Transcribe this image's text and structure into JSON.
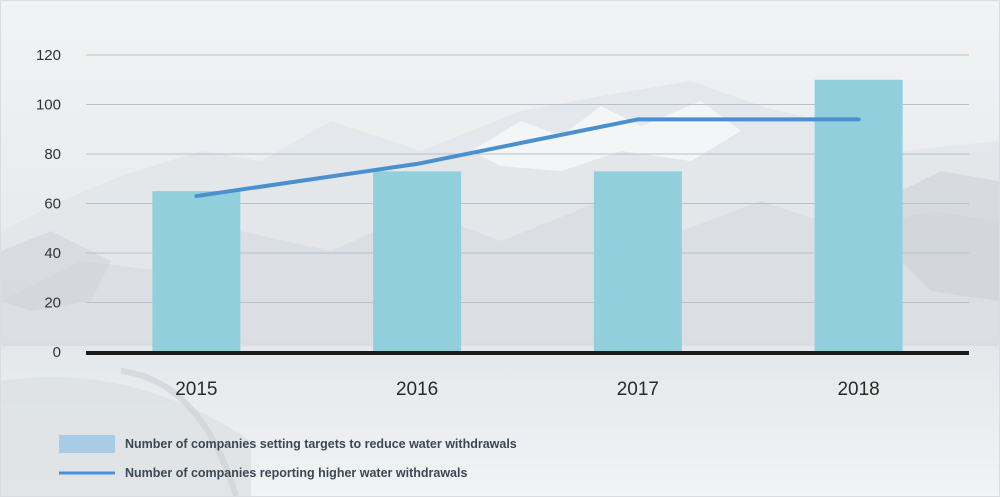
{
  "chart_data": {
    "type": "bar",
    "categories": [
      "2015",
      "2016",
      "2017",
      "2018"
    ],
    "ylim": [
      0,
      120
    ],
    "yticks": [
      0,
      20,
      40,
      60,
      80,
      100,
      120
    ],
    "grid": true,
    "legend_position": "bottom-left",
    "series": [
      {
        "name": "Number of companies setting targets to reduce water withdrawals",
        "type": "bar",
        "color": "#92cfdd",
        "values": [
          65,
          73,
          73,
          110
        ]
      },
      {
        "name": "Number of companies reporting higher water withdrawals",
        "type": "line",
        "color": "#4a90cf",
        "values": [
          63,
          76,
          94,
          94
        ]
      }
    ]
  },
  "legend": {
    "bar_swatch_color": "#a9cce6"
  }
}
